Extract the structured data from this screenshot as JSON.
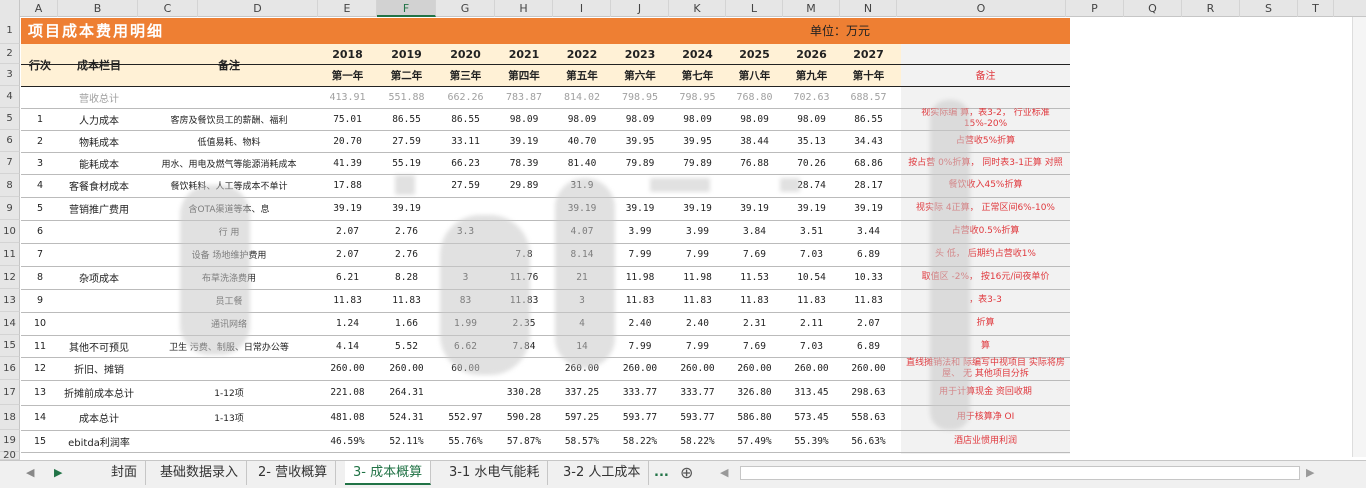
{
  "columns": [
    "A",
    "B",
    "C",
    "D",
    "E",
    "F",
    "G",
    "H",
    "I",
    "J",
    "K",
    "L",
    "M",
    "N",
    "O",
    "P",
    "Q",
    "R",
    "S",
    "T"
  ],
  "selected_column": "F",
  "rows": [
    "1",
    "2",
    "3",
    "4",
    "5",
    "6",
    "7",
    "8",
    "9",
    "10",
    "11",
    "12",
    "13",
    "14",
    "15",
    "16",
    "17",
    "18",
    "19",
    "20"
  ],
  "title": "项目成本费用明细",
  "unit": "单位：万元",
  "header": {
    "row_label": "行次",
    "item_label": "成本栏目",
    "note_label": "备注",
    "remark_label": "备注",
    "years": [
      "2018",
      "2019",
      "2020",
      "2021",
      "2022",
      "2023",
      "2024",
      "2025",
      "2026",
      "2027"
    ],
    "year_nums": [
      "第一年",
      "第二年",
      "第三年",
      "第四年",
      "第五年",
      "第六年",
      "第七年",
      "第八年",
      "第九年",
      "第十年"
    ]
  },
  "revenue": {
    "label": "营收总计",
    "values": [
      "413.91",
      "551.88",
      "662.26",
      "783.87",
      "814.02",
      "798.95",
      "798.95",
      "768.80",
      "702.63",
      "688.57"
    ]
  },
  "data_rows": [
    {
      "no": "1",
      "item": "人力成本",
      "note": "客房及餐饮员工的薪酬、福利",
      "values": [
        "75.01",
        "86.55",
        "86.55",
        "98.09",
        "98.09",
        "98.09",
        "98.09",
        "98.09",
        "98.09",
        "86.55"
      ],
      "remark": "视实际编   算，表3-2， 行业标准 15%-20%"
    },
    {
      "no": "2",
      "item": "物耗成本",
      "note": "低值易耗、物料",
      "values": [
        "20.70",
        "27.59",
        "33.11",
        "39.19",
        "40.70",
        "39.95",
        "39.95",
        "38.44",
        "35.13",
        "34.43"
      ],
      "remark": "占营收5%折算"
    },
    {
      "no": "3",
      "item": "能耗成本",
      "note": "用水、用电及燃气等能源消耗成本",
      "values": [
        "41.39",
        "55.19",
        "66.23",
        "78.39",
        "81.40",
        "79.89",
        "79.89",
        "76.88",
        "70.26",
        "68.86"
      ],
      "remark": "按占营   0%折算， 同时表3-1正算 对照"
    },
    {
      "no": "4",
      "item": "客餐食材成本",
      "note": "餐饮耗料、人工等成本不单计",
      "values": [
        "17.88",
        "",
        "27.59",
        "29.89",
        "31.9",
        "",
        "",
        "",
        "28.74",
        "28.17"
      ],
      "remark": "餐饮收入45%折算"
    },
    {
      "no": "5",
      "item": "营销推广费用",
      "note": "含OTA渠道等本、息",
      "values": [
        "39.19",
        "39.19",
        "",
        "",
        "39.19",
        "39.19",
        "39.19",
        "39.19",
        "39.19",
        "39.19"
      ],
      "remark": "视实际   4正算， 正常区间6%-10%"
    },
    {
      "no": "6",
      "item": "",
      "note": "行   用",
      "values": [
        "2.07",
        "2.76",
        "3.3",
        "",
        "4.07",
        "3.99",
        "3.99",
        "3.84",
        "3.51",
        "3.44"
      ],
      "remark": "占营收0.5%折算"
    },
    {
      "no": "7",
      "item": "",
      "note": "设备   场地维护费用",
      "values": [
        "2.07",
        "2.76",
        "",
        "7.8",
        "8.14",
        "7.99",
        "7.99",
        "7.69",
        "7.03",
        "6.89"
      ],
      "remark": "头   低， 后期约占营收1%"
    },
    {
      "no": "8",
      "item": "杂项成本",
      "note": "布草洗涤费用",
      "values": [
        "6.21",
        "8.28",
        "3",
        "11.76",
        "21",
        "11.98",
        "11.98",
        "11.53",
        "10.54",
        "10.33"
      ],
      "remark": "取值区   -2%， 按16元/间夜单价"
    },
    {
      "no": "9",
      "item": "",
      "note": "员工餐",
      "values": [
        "11.83",
        "11.83",
        "83",
        "11.83",
        "3",
        "11.83",
        "11.83",
        "11.83",
        "11.83",
        "11.83"
      ],
      "remark": "  ，表3-3"
    },
    {
      "no": "10",
      "item": "",
      "note": "通讯网络",
      "values": [
        "1.24",
        "1.66",
        "1.99",
        "2.35",
        "4",
        "2.40",
        "2.40",
        "2.31",
        "2.11",
        "2.07"
      ],
      "remark": "折算"
    },
    {
      "no": "11",
      "item": "其他不可预见",
      "note": "卫生   污费、制服、日常办公等",
      "values": [
        "4.14",
        "5.52",
        "6.62",
        "7.84",
        "14",
        "7.99",
        "7.99",
        "7.69",
        "7.03",
        "6.89"
      ],
      "remark": "算"
    },
    {
      "no": "12",
      "item": "折旧、摊销",
      "note": "",
      "values": [
        "260.00",
        "260.00",
        "60.00",
        "",
        "260.00",
        "260.00",
        "260.00",
        "260.00",
        "260.00",
        "260.00"
      ],
      "remark": "直线摊销法和   际编写中视项目 实际将房屋、 无   其他项目分拆"
    },
    {
      "no": "13",
      "item": "折摊前成本总计",
      "note": "1-12项",
      "values": [
        "221.08",
        "264.31",
        "",
        "330.28",
        "337.25",
        "333.77",
        "333.77",
        "326.80",
        "313.45",
        "298.63"
      ],
      "remark": "用于计算现金   资回收期"
    },
    {
      "no": "14",
      "item": "成本总计",
      "note": "1-13项",
      "values": [
        "481.08",
        "524.31",
        "552.97",
        "590.28",
        "597.25",
        "593.77",
        "593.77",
        "586.80",
        "573.45",
        "558.63"
      ],
      "remark": "用于核算净   OI"
    },
    {
      "no": "15",
      "item": "ebitda利润率",
      "note": "",
      "values": [
        "46.59%",
        "52.11%",
        "55.76%",
        "57.87%",
        "58.57%",
        "58.22%",
        "58.22%",
        "57.49%",
        "55.39%",
        "56.63%"
      ],
      "remark": "酒店业惯用利润  "
    }
  ],
  "tabs": [
    "封面",
    "基础数据录入",
    "2- 营收概算",
    "3- 成本概算",
    "3-1 水电气能耗",
    "3-2 人工成本"
  ],
  "active_tab": "3- 成本概算",
  "more_tabs_label": "...",
  "add_sheet_label": "⊕",
  "colors": {
    "title_bar": "#ee7f33",
    "header_bg": "#fff1d6",
    "remark_text": "#e0393e",
    "excel_green": "#217346"
  }
}
